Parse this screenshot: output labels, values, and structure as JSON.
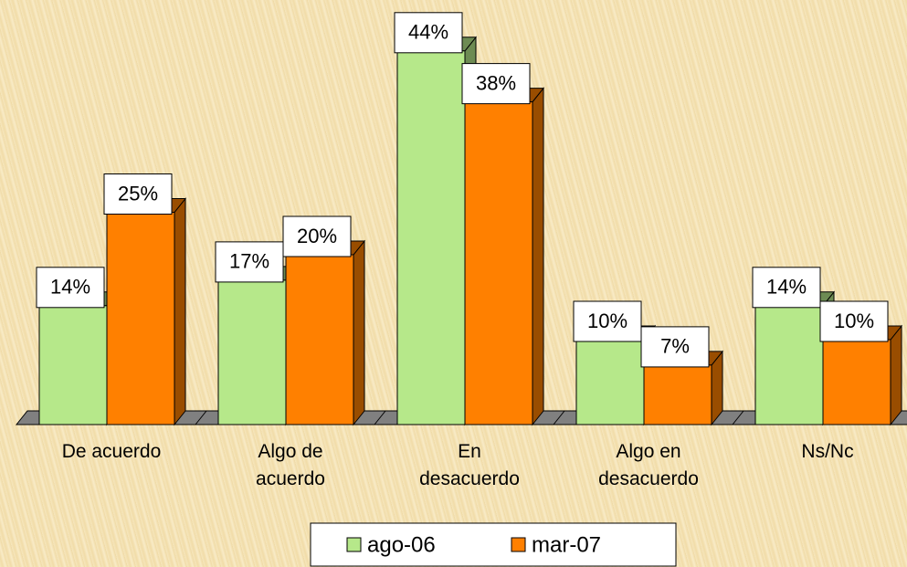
{
  "chart_data": {
    "type": "bar3d",
    "categories": [
      "De acuerdo",
      "Algo de acuerdo",
      "En desacuerdo",
      "Algo en desacuerdo",
      "Ns/Nc"
    ],
    "series": [
      {
        "name": "ago-06",
        "color": "#b6e88a",
        "values": [
          14,
          17,
          44,
          10,
          14
        ],
        "value_labels": [
          "14%",
          "17%",
          "44%",
          "10%",
          "14%"
        ]
      },
      {
        "name": "mar-07",
        "color": "#ff8000",
        "values": [
          25,
          20,
          38,
          7,
          10
        ],
        "value_labels": [
          "25%",
          "20%",
          "38%",
          "7%",
          "10%"
        ]
      }
    ],
    "legend": "bottom"
  }
}
